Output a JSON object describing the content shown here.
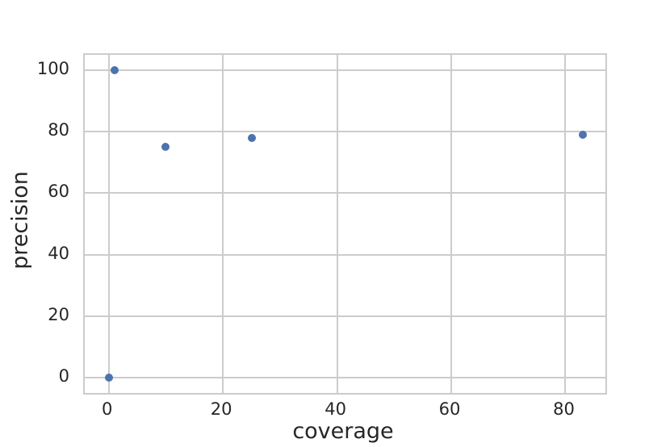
{
  "chart_data": {
    "type": "scatter",
    "title": "",
    "xlabel": "coverage",
    "ylabel": "precision",
    "x": [
      0,
      1,
      10,
      25,
      83
    ],
    "y": [
      0,
      100,
      75,
      78,
      79
    ],
    "xticks": [
      0,
      20,
      40,
      60,
      80
    ],
    "yticks": [
      0,
      20,
      40,
      60,
      80,
      100
    ],
    "xlim": [
      -4.2,
      87.0
    ],
    "ylim": [
      -5,
      105
    ],
    "grid": true,
    "legend": null,
    "point_color": "#4c72b0",
    "grid_color": "#cccccc",
    "spine_color": "#cccccc",
    "text_color": "#262626",
    "background_color": "#ffffff"
  }
}
